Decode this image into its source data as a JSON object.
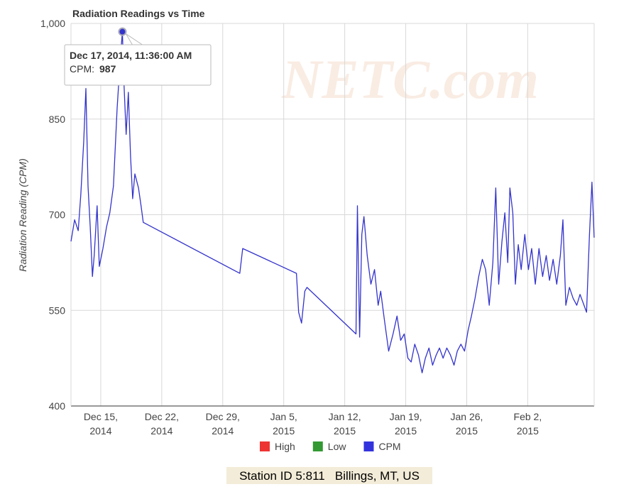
{
  "chart_data": {
    "type": "line",
    "title": "Radiation Readings vs Time",
    "y_label": "Radiation Reading (CPM)",
    "watermark": "NETC.com",
    "footer": "Station ID 5:811   Billings, MT, US",
    "ylim": [
      400,
      1000
    ],
    "yticks": [
      400,
      550,
      700,
      850,
      {
        "value": 1000,
        "label": "1,000"
      }
    ],
    "xlim": [
      "2014-12-11T14:00",
      "2015-02-09T15:00"
    ],
    "xticks": [
      {
        "value": "2014-12-15T00:00",
        "label": "Dec 15, 2014"
      },
      {
        "value": "2014-12-22T00:00",
        "label": "Dec 22, 2014"
      },
      {
        "value": "2014-12-29T00:00",
        "label": "Dec 29, 2014"
      },
      {
        "value": "2015-01-05T00:00",
        "label": "Jan 5, 2015"
      },
      {
        "value": "2015-01-12T00:00",
        "label": "Jan 12, 2015"
      },
      {
        "value": "2015-01-19T00:00",
        "label": "Jan 19, 2015"
      },
      {
        "value": "2015-01-26T00:00",
        "label": "Jan 26, 2015"
      },
      {
        "value": "2015-02-02T00:00",
        "label": "Feb 2, 2015"
      }
    ],
    "grid": true,
    "legend": [
      {
        "name": "High",
        "color": "#ee3333"
      },
      {
        "name": "Low",
        "color": "#339933"
      },
      {
        "name": "CPM",
        "color": "#3333dd"
      }
    ],
    "x": [
      "2014-12-11T14:00",
      "2014-12-12T00:00",
      "2014-12-12T10:00",
      "2014-12-12T17:00",
      "2014-12-13T01:00",
      "2014-12-13T07:00",
      "2014-12-13T13:00",
      "2014-12-13T19:00",
      "2014-12-14T01:00",
      "2014-12-14T06:00",
      "2014-12-14T14:00",
      "2014-12-14T20:00",
      "2014-12-15T06:00",
      "2014-12-15T16:00",
      "2014-12-16T01:00",
      "2014-12-16T11:00",
      "2014-12-16T21:00",
      "2014-12-17T05:00",
      "2014-12-17T11:36",
      "2014-12-17T16:00",
      "2014-12-17T22:00",
      "2014-12-18T04:00",
      "2014-12-18T10:00",
      "2014-12-18T16:00",
      "2014-12-18T22:00",
      "2014-12-19T08:00",
      "2014-12-19T15:00",
      "2014-12-19T21:00",
      "2014-12-30T23:00",
      "2014-12-31T07:00",
      "2015-01-06T11:00",
      "2015-01-06T17:00",
      "2015-01-07T01:00",
      "2015-01-07T10:00",
      "2015-01-07T16:00",
      "2015-01-13T07:00",
      "2015-01-13T11:00",
      "2015-01-13T17:00",
      "2015-01-13T23:00",
      "2015-01-14T05:00",
      "2015-01-14T14:00",
      "2015-01-15T00:00",
      "2015-01-15T10:00",
      "2015-01-15T20:00",
      "2015-01-16T03:00",
      "2015-01-16T13:00",
      "2015-01-17T01:00",
      "2015-01-17T13:00",
      "2015-01-18T00:00",
      "2015-01-18T10:00",
      "2015-01-18T20:00",
      "2015-01-19T06:00",
      "2015-01-19T15:00",
      "2015-01-20T01:00",
      "2015-01-20T11:00",
      "2015-01-20T21:00",
      "2015-01-21T06:00",
      "2015-01-21T16:00",
      "2015-01-22T02:00",
      "2015-01-22T12:00",
      "2015-01-22T21:00",
      "2015-01-23T07:00",
      "2015-01-23T17:00",
      "2015-01-24T03:00",
      "2015-01-24T13:00",
      "2015-01-24T22:00",
      "2015-01-25T08:00",
      "2015-01-25T18:00",
      "2015-01-26T04:00",
      "2015-01-26T13:00",
      "2015-01-26T23:00",
      "2015-01-27T09:00",
      "2015-01-27T19:00",
      "2015-01-28T04:00",
      "2015-01-28T14:00",
      "2015-01-29T00:00",
      "2015-01-29T08:00",
      "2015-01-29T16:00",
      "2015-01-30T01:00",
      "2015-01-30T09:00",
      "2015-01-30T17:00",
      "2015-01-30T23:00",
      "2015-01-31T07:00",
      "2015-01-31T14:00",
      "2015-01-31T22:00",
      "2015-02-01T06:00",
      "2015-02-01T16:00",
      "2015-02-02T02:00",
      "2015-02-02T11:00",
      "2015-02-02T21:00",
      "2015-02-03T07:00",
      "2015-02-03T17:00",
      "2015-02-04T03:00",
      "2015-02-04T12:00",
      "2015-02-04T22:00",
      "2015-02-05T08:00",
      "2015-02-05T18:00",
      "2015-02-06T01:00",
      "2015-02-06T09:00",
      "2015-02-06T19:00",
      "2015-02-07T05:00",
      "2015-02-07T15:00",
      "2015-02-08T00:00",
      "2015-02-08T08:00",
      "2015-02-08T18:00",
      "2015-02-09T02:00",
      "2015-02-09T09:00",
      "2015-02-09T15:00"
    ],
    "series": [
      {
        "name": "CPM",
        "color": "#3333cc",
        "values": [
          658,
          692,
          675,
          731,
          814,
          898,
          745,
          681,
          603,
          636,
          714,
          619,
          647,
          681,
          703,
          745,
          867,
          937,
          987,
          904,
          826,
          892,
          792,
          725,
          764,
          742,
          714,
          688,
          608,
          647,
          608,
          547,
          530,
          580,
          586,
          513,
          714,
          508,
          669,
          697,
          636,
          591,
          614,
          558,
          580,
          536,
          486,
          513,
          541,
          503,
          513,
          475,
          469,
          497,
          480,
          452,
          475,
          491,
          464,
          480,
          491,
          475,
          491,
          480,
          464,
          486,
          497,
          486,
          519,
          541,
          569,
          603,
          630,
          614,
          558,
          625,
          742,
          591,
          658,
          703,
          625,
          742,
          703,
          591,
          653,
          614,
          669,
          614,
          647,
          591,
          647,
          603,
          636,
          597,
          630,
          591,
          636,
          692,
          558,
          586,
          569,
          558,
          575,
          563,
          547,
          669,
          751,
          664
        ]
      }
    ],
    "annotation": {
      "title": "Dec 17, 2014, 11:36:00 AM",
      "label": "CPM:",
      "x": "2014-12-17T11:36",
      "value": 987
    }
  }
}
